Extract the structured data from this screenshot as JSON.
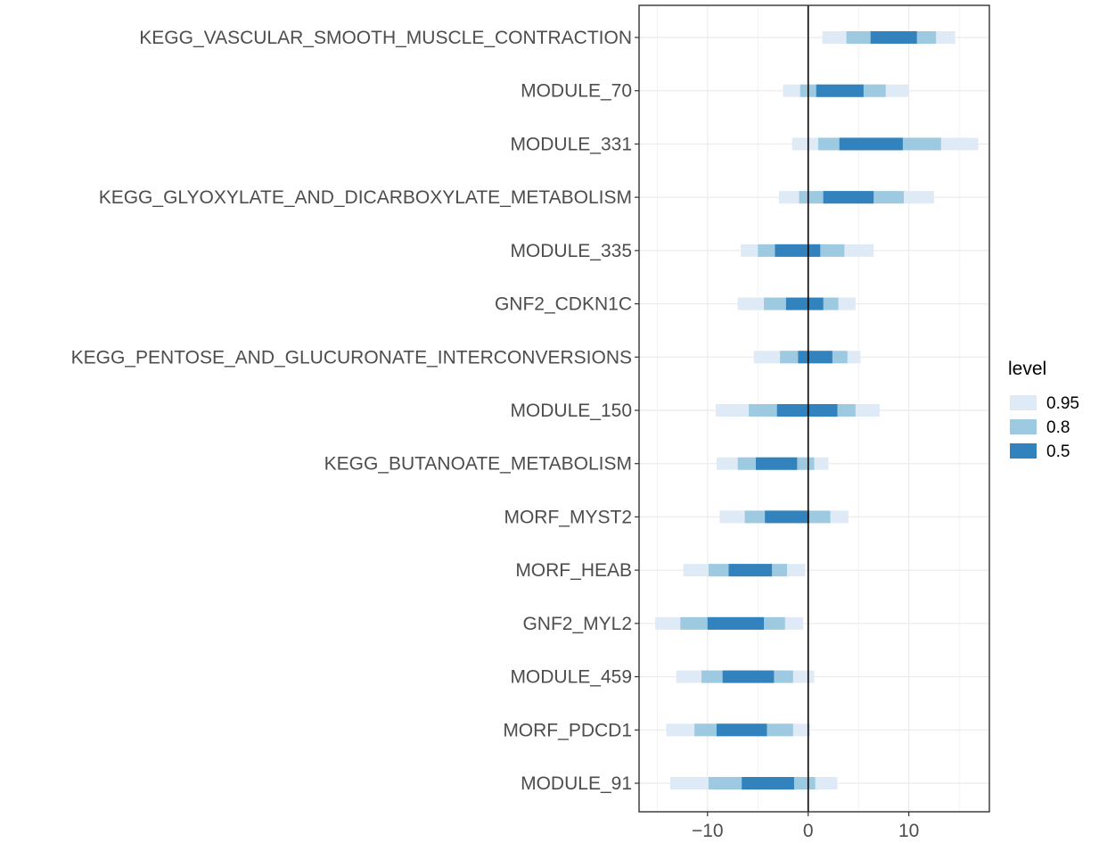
{
  "chart_data": {
    "type": "interval",
    "categories": [
      "KEGG_VASCULAR_SMOOTH_MUSCLE_CONTRACTION",
      "MODULE_70",
      "MODULE_331",
      "KEGG_GLYOXYLATE_AND_DICARBOXYLATE_METABOLISM",
      "MODULE_335",
      "GNF2_CDKN1C",
      "KEGG_PENTOSE_AND_GLUCURONATE_INTERCONVERSIONS",
      "MODULE_150",
      "KEGG_BUTANOATE_METABOLISM",
      "MORF_MYST2",
      "MORF_HEAB",
      "GNF2_MYL2",
      "MODULE_459",
      "MORF_PDCD1",
      "MODULE_91"
    ],
    "intervals": {
      "0.95": [
        [
          1.4,
          14.6
        ],
        [
          -2.5,
          10.0
        ],
        [
          -1.6,
          16.9
        ],
        [
          -2.9,
          12.5
        ],
        [
          -6.7,
          6.5
        ],
        [
          -7.0,
          4.7
        ],
        [
          -5.4,
          5.2
        ],
        [
          -9.2,
          7.1
        ],
        [
          -9.1,
          2.0
        ],
        [
          -8.8,
          4.0
        ],
        [
          -12.4,
          -0.3
        ],
        [
          -15.2,
          -0.5
        ],
        [
          -13.1,
          0.6
        ],
        [
          -14.1,
          0.2
        ],
        [
          -13.7,
          2.9
        ]
      ],
      "0.8": [
        [
          3.8,
          12.7
        ],
        [
          -0.8,
          7.7
        ],
        [
          1.0,
          13.2
        ],
        [
          -0.9,
          9.5
        ],
        [
          -5.0,
          3.6
        ],
        [
          -4.4,
          3.0
        ],
        [
          -2.8,
          3.9
        ],
        [
          -5.9,
          4.7
        ],
        [
          -7.0,
          0.6
        ],
        [
          -6.3,
          2.2
        ],
        [
          -9.9,
          -2.1
        ],
        [
          -12.7,
          -2.3
        ],
        [
          -10.6,
          -1.5
        ],
        [
          -11.3,
          -1.5
        ],
        [
          -9.9,
          0.7
        ]
      ],
      "0.5": [
        [
          6.2,
          10.8
        ],
        [
          0.8,
          5.5
        ],
        [
          3.1,
          9.4
        ],
        [
          1.5,
          6.5
        ],
        [
          -3.3,
          1.2
        ],
        [
          -2.2,
          1.5
        ],
        [
          -1.0,
          2.4
        ],
        [
          -3.1,
          2.9
        ],
        [
          -5.2,
          -1.1
        ],
        [
          -4.3,
          0.1
        ],
        [
          -7.9,
          -3.6
        ],
        [
          -10.0,
          -4.4
        ],
        [
          -8.5,
          -3.4
        ],
        [
          -9.1,
          -4.1
        ],
        [
          -6.6,
          -1.4
        ]
      ]
    },
    "xlim": [
      -16.8,
      18.0
    ],
    "xticks": [
      -10,
      0,
      10
    ],
    "xtick_labels": [
      "−10",
      "0",
      "10"
    ],
    "reference_line": 0,
    "grid": true,
    "legend": {
      "title": "level",
      "position": "right",
      "entries": [
        {
          "label": "0.95",
          "color": "#deebf7"
        },
        {
          "label": "0.8",
          "color": "#9ecae1"
        },
        {
          "label": "0.5",
          "color": "#3182bd"
        }
      ]
    },
    "title": "",
    "xlabel": "",
    "ylabel": ""
  }
}
